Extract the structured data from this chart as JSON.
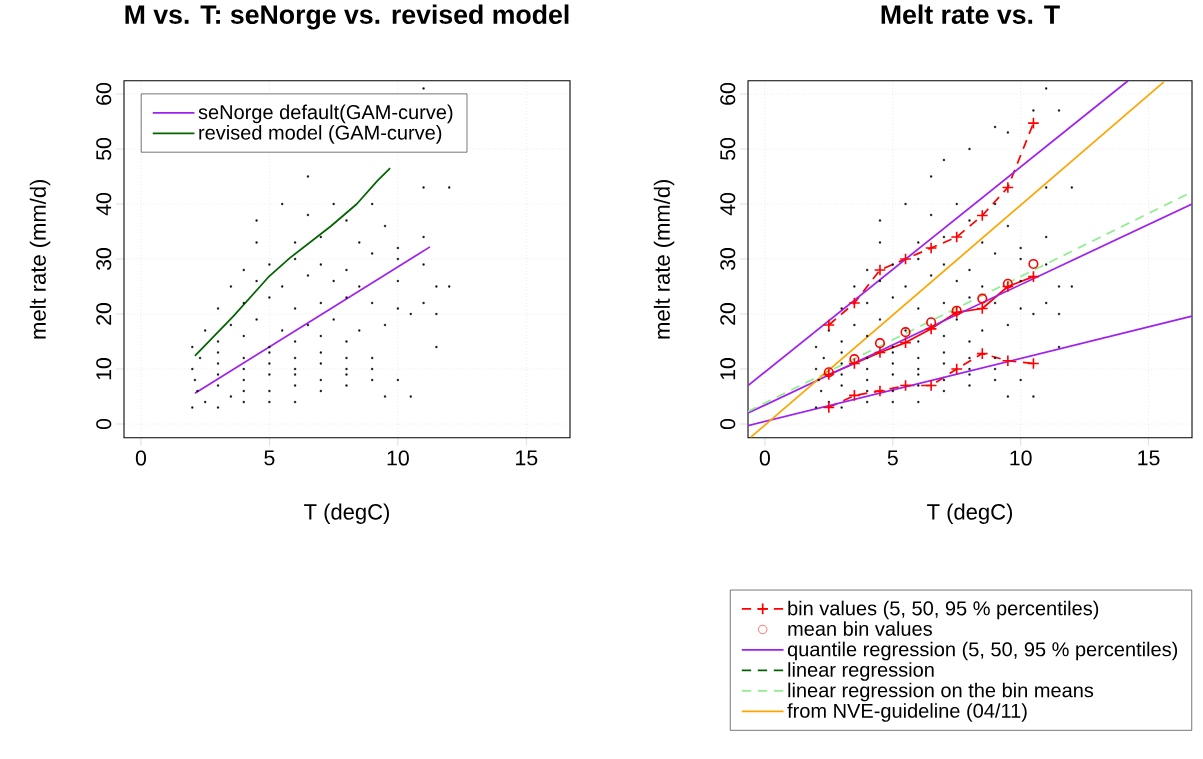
{
  "chart_data": [
    {
      "type": "line",
      "title": "M vs. T: seNorge vs. revised model",
      "xlabel": "T (degC)",
      "ylabel": "melt rate (mm/d)",
      "xlim": [
        -0.66,
        16.7
      ],
      "ylim": [
        -2.5,
        62.4
      ],
      "xticks": [
        0,
        5,
        10,
        15
      ],
      "yticks": [
        0,
        10,
        20,
        30,
        40,
        50,
        60
      ],
      "grid": true,
      "legend": "top left",
      "series": [
        {
          "type": "scatter",
          "color": "#000000",
          "marker": "square",
          "x": [
            2.0,
            2.5,
            3,
            3.5,
            4,
            5,
            6,
            2.2,
            3,
            4,
            5,
            6,
            7,
            8,
            2.1,
            3,
            4,
            5,
            6,
            7,
            8,
            9,
            2,
            3,
            4,
            5,
            6,
            7,
            8,
            9,
            2.3,
            3,
            4,
            5,
            6,
            7,
            8,
            9,
            2,
            3,
            4,
            5,
            6,
            7,
            8,
            2.5,
            3.5,
            4.5,
            5.5,
            6.5,
            7.5,
            8.5,
            9.5,
            10.5,
            3,
            4,
            5,
            6,
            7,
            8,
            9,
            10,
            11,
            3.5,
            4.5,
            5.5,
            6.5,
            7.5,
            8.5,
            10,
            11.5,
            4,
            5,
            6,
            7,
            8,
            9,
            10,
            11,
            12,
            4.5,
            6,
            7,
            8.5,
            10,
            11,
            4.5,
            6.5,
            8,
            9.5,
            5.5,
            7.5,
            9,
            11,
            6.5,
            11,
            12,
            10,
            9.5,
            10.5,
            11.5,
            11.5
          ],
          "values": [
            3,
            4,
            3,
            5,
            4,
            4,
            4,
            6,
            7,
            6,
            6,
            7,
            6,
            7,
            8,
            9,
            8,
            9,
            9,
            8,
            9,
            8,
            10,
            11,
            10,
            11,
            10,
            11,
            10,
            10,
            12,
            13,
            12,
            13,
            12,
            13,
            12,
            12,
            14,
            15,
            16,
            14,
            15,
            16,
            15,
            17,
            18,
            19,
            17,
            18,
            19,
            17,
            18,
            20,
            21,
            22,
            23,
            21,
            22,
            23,
            22,
            21,
            22,
            25,
            26,
            25,
            27,
            26,
            25,
            26,
            25,
            28,
            29,
            30,
            29,
            28,
            31,
            30,
            29,
            25,
            33,
            33,
            34,
            33,
            32,
            34,
            37,
            38,
            37,
            36,
            40,
            40,
            40,
            43,
            45,
            61,
            43,
            8,
            5,
            5,
            14,
            20
          ]
        },
        {
          "name": "seNorge default(GAM-curve)",
          "color": "#a020f0",
          "x": [
            2.1,
            11.25
          ],
          "values": [
            5.6,
            32.2
          ]
        },
        {
          "name": "revised model (GAM-curve)",
          "color": "#006400",
          "x": [
            2.1,
            3.6,
            5.0,
            5.8,
            7.4,
            8.4,
            9.2,
            9.7
          ],
          "values": [
            12.4,
            19.6,
            26.9,
            30.2,
            36.0,
            40.0,
            44.2,
            46.5
          ]
        }
      ]
    },
    {
      "type": "line",
      "title": "Melt rate vs. T",
      "xlabel": "T (degC)",
      "ylabel": "melt rate (mm/d)",
      "xlim": [
        -0.66,
        16.7
      ],
      "ylim": [
        -2.5,
        62.4
      ],
      "xticks": [
        0,
        5,
        10,
        15
      ],
      "yticks": [
        0,
        10,
        20,
        30,
        40,
        50,
        60
      ],
      "grid": true,
      "legend": "bottom right",
      "series": [
        {
          "type": "scatter",
          "color": "#000000",
          "marker": "square",
          "x": [
            2.0,
            2.5,
            3,
            3.5,
            4,
            5,
            6,
            2.2,
            3,
            4,
            5,
            6,
            7,
            8,
            2.1,
            3,
            4,
            5,
            6,
            7,
            8,
            9,
            2,
            3,
            4,
            5,
            6,
            7,
            8,
            9,
            2.3,
            3,
            4,
            5,
            6,
            7,
            8,
            9,
            2,
            3,
            4,
            5,
            6,
            7,
            8,
            2.5,
            3.5,
            4.5,
            5.5,
            6.5,
            7.5,
            8.5,
            9.5,
            10.5,
            3,
            4,
            5,
            6,
            7,
            8,
            9,
            10,
            11,
            3.5,
            4.5,
            5.5,
            6.5,
            7.5,
            8.5,
            10,
            11.5,
            4,
            5,
            6,
            7,
            8,
            9,
            10,
            11,
            12,
            4.5,
            6,
            7,
            8.5,
            10,
            11,
            4.5,
            6.5,
            8,
            9.5,
            5.5,
            7.5,
            9,
            11,
            6.5,
            7,
            8,
            9,
            9.5,
            10.5,
            11.5,
            11,
            12,
            10,
            9.5,
            10.5,
            11.5,
            11.5
          ],
          "values": [
            3,
            4,
            3,
            null,
            4,
            4,
            4,
            6,
            7,
            6,
            6,
            7,
            6,
            7,
            8,
            9,
            8,
            9,
            9,
            8,
            9,
            8,
            10,
            11,
            10,
            11,
            10,
            11,
            10,
            10,
            12,
            13,
            12,
            13,
            12,
            13,
            12,
            12,
            14,
            15,
            16,
            14,
            15,
            16,
            15,
            17,
            18,
            19,
            17,
            null,
            19,
            17,
            18,
            20,
            21,
            22,
            23,
            21,
            22,
            23,
            22,
            21,
            22,
            25,
            26,
            25,
            27,
            26,
            25,
            26,
            25,
            28,
            29,
            30,
            29,
            28,
            31,
            30,
            29,
            25,
            33,
            33,
            34,
            33,
            32,
            34,
            37,
            38,
            37,
            36,
            40,
            40,
            40,
            43,
            45,
            48,
            50,
            54,
            53,
            57,
            57,
            61,
            43,
            8,
            5,
            5,
            14,
            20
          ]
        },
        {
          "name": "bin values (5, 50, 95 % percentiles)",
          "color": "#ff0000",
          "marker": "cross",
          "line_style": "dashed",
          "x": [
            2.5,
            3.5,
            4.5,
            5.5,
            6.5,
            7.5,
            8.5,
            9.5,
            10.5
          ],
          "values": [
            3,
            5.2,
            6,
            7,
            7,
            10,
            12.8,
            11.5,
            11
          ]
        },
        {
          "color": "#ff0000",
          "marker": "cross",
          "line_style": "solid",
          "x": [
            2.5,
            3.5,
            4.5,
            5.5,
            6.5,
            7.5,
            8.5,
            9.5,
            10.5
          ],
          "values": [
            9,
            11,
            13,
            14.8,
            17.3,
            20.3,
            21,
            25,
            26.8
          ]
        },
        {
          "color": "#ff0000",
          "marker": "cross",
          "line_style": "dashed",
          "x": [
            2.5,
            3.5,
            4.5,
            5.5,
            6.5,
            7.5,
            8.5,
            9.5,
            10.5
          ],
          "values": [
            18,
            22,
            28,
            30,
            32,
            34,
            37.9,
            43,
            54.7
          ]
        },
        {
          "type": "scatter",
          "name": "mean bin values",
          "color": "#ff0000",
          "marker": "circle",
          "x": [
            2.5,
            3.5,
            4.5,
            5.5,
            6.5,
            7.5,
            8.5,
            9.5,
            10.5
          ],
          "values": [
            9.4,
            11.8,
            14.7,
            16.7,
            18.5,
            20.6,
            22.8,
            25.5,
            29.1
          ]
        },
        {
          "name": "quantile regression (5, 50, 95 % percentiles)",
          "color": "#a020f0",
          "line_style": "solid",
          "x": [
            -0.66,
            16.7
          ],
          "values": [
            -0.3,
            19.6
          ]
        },
        {
          "color": "#a020f0",
          "line_style": "solid",
          "x": [
            -0.66,
            16.7
          ],
          "values": [
            2.0,
            40.0
          ]
        },
        {
          "color": "#a020f0",
          "line_style": "solid",
          "x": [
            -0.66,
            14.2
          ],
          "values": [
            7.0,
            62.4
          ]
        },
        {
          "name": "linear regression",
          "color": "#006400",
          "line_style": "dashed"
        },
        {
          "name": "linear regression on the bin means",
          "color": "#90ee90",
          "line_style": "dashed",
          "x": [
            -0.66,
            16.7
          ],
          "values": [
            2.3,
            42.2
          ]
        },
        {
          "name": "from NVE-guideline (04/11)",
          "color": "#ffa500",
          "line_style": "solid",
          "x": [
            -0.55,
            15.6
          ],
          "values": [
            -2.4,
            62.2
          ]
        }
      ]
    }
  ]
}
